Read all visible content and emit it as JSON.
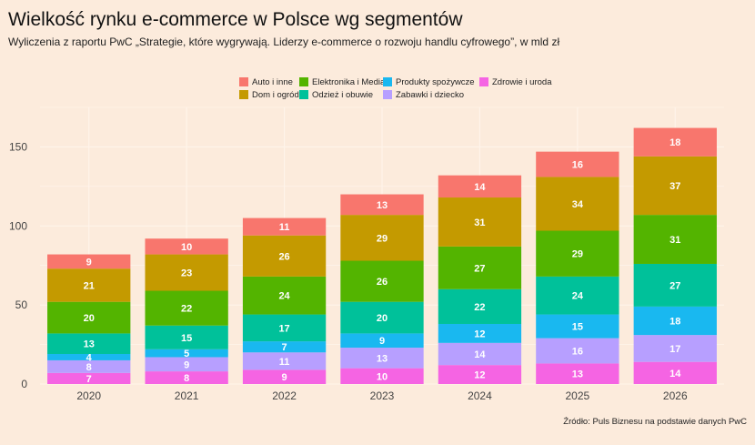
{
  "header": {
    "title": "Wielkość rynku e-commerce w Polsce wg segmentów",
    "subtitle": "Wyliczenia z raportu PwC „Strategie, które wygrywają. Liderzy e-commerce o rozwoju handlu cyfrowego”, w mld zł"
  },
  "footer": {
    "source": "Źródło: Puls Biznesu na podstawie danych PwC"
  },
  "chart_data": {
    "type": "bar",
    "stacked": true,
    "title": "Wielkość rynku e-commerce w Polsce wg segmentów",
    "subtitle": "Wyliczenia z raportu PwC „Strategie, które wygrywają. Liderzy e-commerce o rozwoju handlu cyfrowego”, w mld zł",
    "xlabel": "",
    "ylabel": "",
    "ylim": [
      0,
      175
    ],
    "yticks": [
      0,
      50,
      100,
      150
    ],
    "grid": true,
    "legend_position": "top",
    "categories": [
      "2020",
      "2021",
      "2022",
      "2023",
      "2024",
      "2025",
      "2026"
    ],
    "legend_order": [
      "Auto i inne",
      "Elektronika i Media",
      "Produkty spożywcze",
      "Zdrowie i uroda",
      "Dom i ogród",
      "Odzież i obuwie",
      "Zabawki i dziecko"
    ],
    "series": [
      {
        "name": "Zdrowie i uroda",
        "color": "#f564e3",
        "values": [
          7,
          8,
          9,
          10,
          12,
          13,
          14
        ]
      },
      {
        "name": "Zabawki i dziecko",
        "color": "#b79fff",
        "values": [
          8,
          9,
          11,
          13,
          14,
          16,
          17
        ]
      },
      {
        "name": "Produkty spożywcze",
        "color": "#19b8f0",
        "values": [
          4,
          5,
          7,
          9,
          12,
          15,
          18
        ]
      },
      {
        "name": "Odzież i obuwie",
        "color": "#00c19a",
        "values": [
          13,
          15,
          17,
          20,
          22,
          24,
          27
        ]
      },
      {
        "name": "Elektronika i Media",
        "color": "#53b400",
        "values": [
          20,
          22,
          24,
          26,
          27,
          29,
          31
        ]
      },
      {
        "name": "Dom i ogród",
        "color": "#c49a00",
        "values": [
          21,
          23,
          26,
          29,
          31,
          34,
          37
        ]
      },
      {
        "name": "Auto i inne",
        "color": "#f8766d",
        "values": [
          9,
          10,
          11,
          13,
          14,
          16,
          18
        ]
      }
    ]
  }
}
